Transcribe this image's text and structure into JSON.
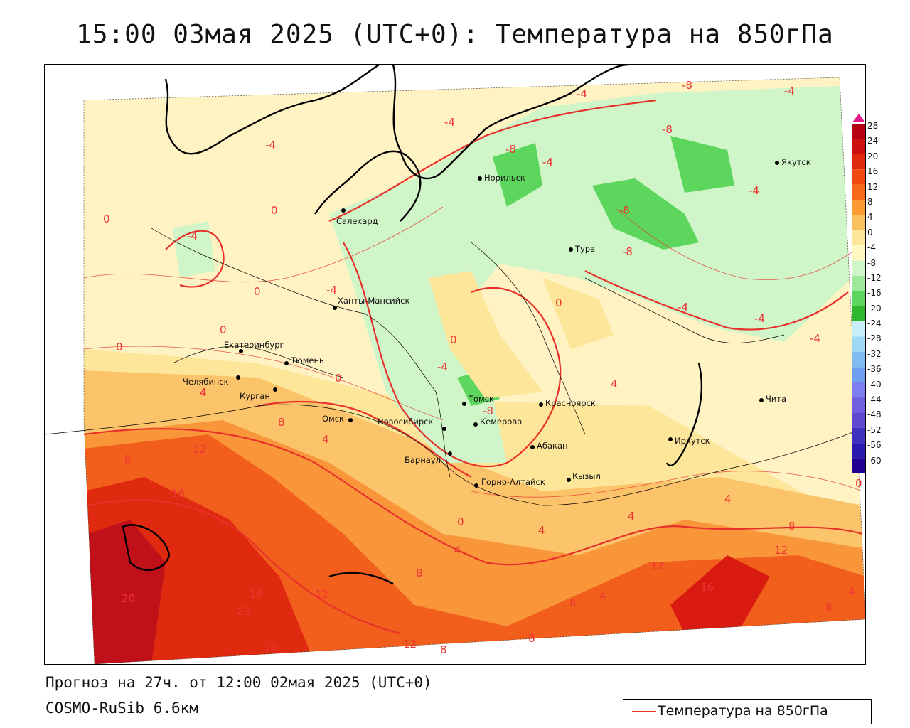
{
  "title": "15:00 03мая 2025 (UTC+0): Температура на 850гПа",
  "footer": {
    "forecast": "Прогноз на 27ч. от 12:00 02мая 2025 (UTC+0)",
    "model": "COSMO-RuSib 6.6км"
  },
  "legend": {
    "label": "Температура на 850гПа",
    "line_color": "#e8302a"
  },
  "colorbar": {
    "labels": [
      "28",
      "24",
      "20",
      "16",
      "12",
      "8",
      "4",
      "0",
      "-4",
      "-8",
      "-12",
      "-16",
      "-20",
      "-24",
      "-28",
      "-32",
      "-36",
      "-40",
      "-44",
      "-48",
      "-52",
      "-56",
      "-60"
    ],
    "colors": [
      "#b40010",
      "#cc1010",
      "#e02a10",
      "#f04a10",
      "#f76a1a",
      "#fa9a30",
      "#f9c060",
      "#fde69a",
      "#fff7c0",
      "#cff5c8",
      "#9ee89a",
      "#5cd65c",
      "#2fb82f",
      "#c8eef9",
      "#9fd8f5",
      "#7fbaf0",
      "#6f9ff0",
      "#7d7ef0",
      "#7060e0",
      "#6048d0",
      "#4030c0",
      "#2a1ab0",
      "#200090"
    ]
  },
  "cities": [
    {
      "name": "Норильск"
    },
    {
      "name": "Якутск"
    },
    {
      "name": "Салехард"
    },
    {
      "name": "Тура"
    },
    {
      "name": "Ханты-Мансийск"
    },
    {
      "name": "Екатеринбург"
    },
    {
      "name": "Тюмень"
    },
    {
      "name": "Челябинск"
    },
    {
      "name": "Курган"
    },
    {
      "name": "Омск"
    },
    {
      "name": "Томск"
    },
    {
      "name": "Красноярск"
    },
    {
      "name": "Новосибирск"
    },
    {
      "name": "Кемерово"
    },
    {
      "name": "Абакан"
    },
    {
      "name": "Иркутск"
    },
    {
      "name": "Чита"
    },
    {
      "name": "Барнаул"
    },
    {
      "name": "Горно-Алтайск"
    },
    {
      "name": "Кызыл"
    }
  ],
  "isotherm_labels": [
    "-4",
    "-8",
    "0",
    "4",
    "8",
    "12",
    "16",
    "20"
  ]
}
